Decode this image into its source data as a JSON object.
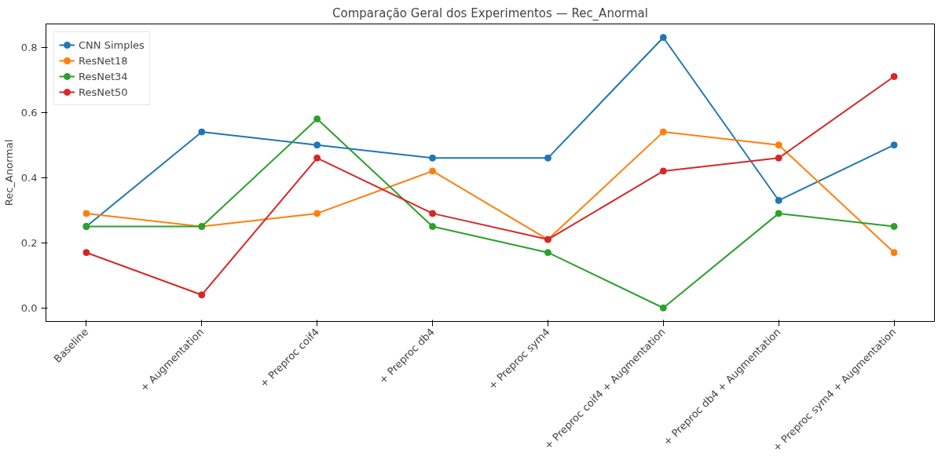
{
  "chart_data": {
    "type": "line",
    "title": "Comparação Geral dos Experimentos — Rec_Anormal",
    "ylabel": "Rec_Anormal",
    "categories": [
      "Baseline",
      "+ Augmentation",
      "+ Preproc coif4",
      "+ Preproc db4",
      "+ Preproc sym4",
      "+ Preproc coif4 + Augmentation",
      "+ Preproc db4 + Augmentation",
      "+ Preproc sym4 + Augmentation"
    ],
    "series": [
      {
        "name": "CNN Simples",
        "color": "#1f77b4",
        "values": [
          0.25,
          0.54,
          0.5,
          0.46,
          0.46,
          0.83,
          0.33,
          0.5
        ]
      },
      {
        "name": "ResNet18",
        "color": "#ff7f0e",
        "values": [
          0.29,
          0.25,
          0.29,
          0.42,
          0.21,
          0.54,
          0.5,
          0.17
        ]
      },
      {
        "name": "ResNet34",
        "color": "#2ca02c",
        "values": [
          0.25,
          0.25,
          0.58,
          0.25,
          0.17,
          0.0,
          0.29,
          0.25
        ]
      },
      {
        "name": "ResNet50",
        "color": "#d62728",
        "values": [
          0.17,
          0.04,
          0.46,
          0.29,
          0.21,
          0.42,
          0.46,
          0.71
        ]
      }
    ],
    "ylim": [
      -0.0415,
      0.8715
    ],
    "yticks": [
      {
        "value": 0,
        "label": "0.0"
      },
      0.2,
      0.4,
      0.6,
      0.8
    ],
    "grid": false,
    "legend": "top left",
    "marker": "circle",
    "line_style": "solid"
  }
}
